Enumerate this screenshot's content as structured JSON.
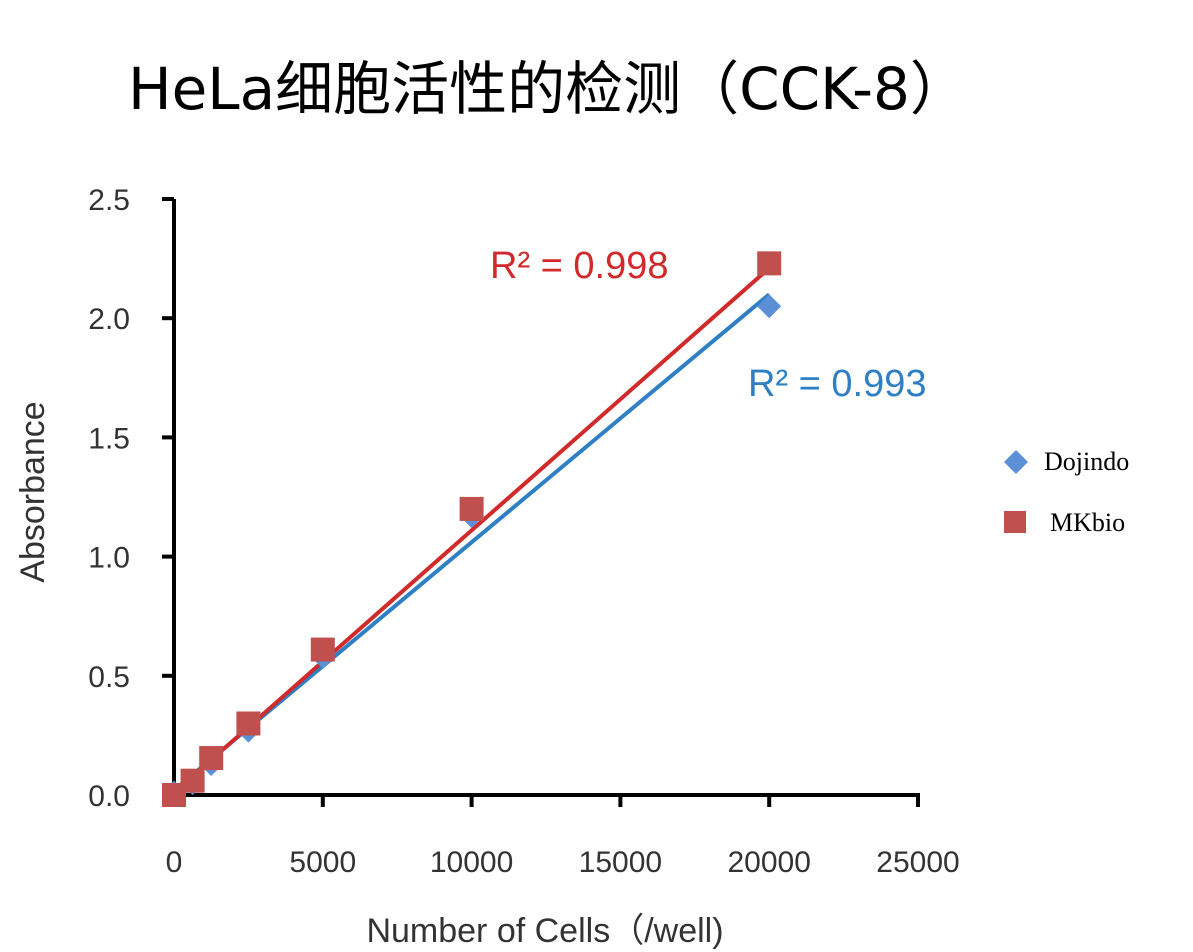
{
  "chart_data": {
    "type": "scatter",
    "title": "HeLa细胞活性的检测（CCK-8）",
    "xlabel": "Number of Cells（/well)",
    "ylabel": "Absorbance",
    "xlim": [
      0,
      25000
    ],
    "ylim": [
      0,
      2.5
    ],
    "xticks": [
      "0",
      "5000",
      "10000",
      "15000",
      "20000",
      "25000"
    ],
    "yticks": [
      "0.0",
      "0.5",
      "1.0",
      "1.5",
      "2.0",
      "2.5"
    ],
    "grid": false,
    "legend_placement": "right",
    "series": [
      {
        "name": "Dojindo",
        "marker": "diamond",
        "color": "#5b8fd6",
        "line_color": "#2e7fc4",
        "x": [
          0,
          625,
          1250,
          2500,
          5000,
          10000,
          20000
        ],
        "y": [
          0.01,
          0.05,
          0.13,
          0.27,
          0.58,
          1.17,
          2.05
        ],
        "trendline": {
          "y_at_0": 0.02,
          "y_at_20000": 2.1
        },
        "r2_label": "R² = 0.993"
      },
      {
        "name": "MKbio",
        "marker": "square",
        "color": "#c0504d",
        "line_color": "#d02a2a",
        "x": [
          0,
          625,
          1250,
          2500,
          5000,
          10000,
          20000
        ],
        "y": [
          0.0,
          0.06,
          0.155,
          0.3,
          0.61,
          1.2,
          2.23
        ],
        "trendline": {
          "y_at_0": 0.01,
          "y_at_20000": 2.21
        },
        "r2_label": "R² = 0.998"
      }
    ]
  }
}
